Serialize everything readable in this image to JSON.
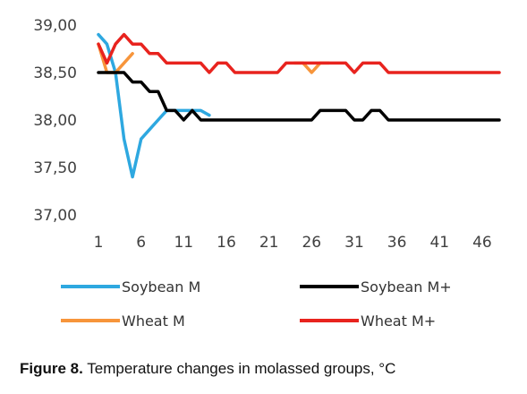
{
  "caption": {
    "label": "Figure 8.",
    "text": "Temperature changes in molassed groups, °C"
  },
  "chart_data": {
    "type": "line",
    "ylim": [
      37.0,
      39.0
    ],
    "yticks": [
      "37,00",
      "37,50",
      "38,00",
      "38,50",
      "39,00"
    ],
    "ytick_values": [
      37.0,
      37.5,
      38.0,
      38.5,
      39.0
    ],
    "xlim": [
      1,
      48
    ],
    "xticks": [
      "1",
      "6",
      "11",
      "16",
      "21",
      "26",
      "31",
      "36",
      "41",
      "46"
    ],
    "xtick_values": [
      1,
      6,
      11,
      16,
      21,
      26,
      31,
      36,
      41,
      46
    ],
    "grid": false,
    "legend_position": "bottom",
    "series": [
      {
        "name": "Soybean M",
        "color": "#2EA8E0",
        "x": [
          1,
          2,
          3,
          4,
          5,
          6,
          7,
          8,
          9,
          10,
          11,
          12,
          13,
          14
        ],
        "values": [
          38.9,
          38.8,
          38.5,
          37.8,
          37.4,
          37.8,
          37.9,
          38.0,
          38.1,
          38.1,
          38.1,
          38.1,
          38.1,
          38.05
        ]
      },
      {
        "name": "Soybean M+",
        "color": "#000000",
        "x": [
          1,
          2,
          3,
          4,
          5,
          6,
          7,
          8,
          9,
          10,
          11,
          12,
          13,
          14,
          15,
          16,
          17,
          18,
          19,
          20,
          21,
          22,
          23,
          24,
          25,
          26,
          27,
          28,
          29,
          30,
          31,
          32,
          33,
          34,
          35,
          36,
          37,
          38,
          39,
          40,
          41,
          42,
          43,
          44,
          45,
          46,
          47,
          48
        ],
        "values": [
          38.5,
          38.5,
          38.5,
          38.5,
          38.4,
          38.4,
          38.3,
          38.3,
          38.1,
          38.1,
          38.0,
          38.1,
          38.0,
          38.0,
          38.0,
          38.0,
          38.0,
          38.0,
          38.0,
          38.0,
          38.0,
          38.0,
          38.0,
          38.0,
          38.0,
          38.0,
          38.1,
          38.1,
          38.1,
          38.1,
          38.0,
          38.0,
          38.1,
          38.1,
          38.0,
          38.0,
          38.0,
          38.0,
          38.0,
          38.0,
          38.0,
          38.0,
          38.0,
          38.0,
          38.0,
          38.0,
          38.0,
          38.0
        ]
      },
      {
        "name": "Wheat M",
        "color": "#F7953B",
        "x": [
          1,
          2,
          3,
          4,
          5,
          24,
          25,
          26,
          27,
          28
        ],
        "values": [
          38.8,
          38.5,
          38.5,
          38.6,
          38.7,
          38.6,
          38.6,
          38.5,
          38.6,
          38.6
        ]
      },
      {
        "name": "Wheat M+",
        "color": "#E8231E",
        "x": [
          1,
          2,
          3,
          4,
          5,
          6,
          7,
          8,
          9,
          10,
          11,
          12,
          13,
          14,
          15,
          16,
          17,
          18,
          19,
          20,
          21,
          22,
          23,
          24,
          25,
          26,
          27,
          28,
          29,
          30,
          31,
          32,
          33,
          34,
          35,
          36,
          37,
          38,
          39,
          40,
          41,
          42,
          43,
          44,
          45,
          46,
          47,
          48
        ],
        "values": [
          38.8,
          38.6,
          38.8,
          38.9,
          38.8,
          38.8,
          38.7,
          38.7,
          38.6,
          38.6,
          38.6,
          38.6,
          38.6,
          38.5,
          38.6,
          38.6,
          38.5,
          38.5,
          38.5,
          38.5,
          38.5,
          38.5,
          38.6,
          38.6,
          38.6,
          38.6,
          38.6,
          38.6,
          38.6,
          38.6,
          38.5,
          38.6,
          38.6,
          38.6,
          38.5,
          38.5,
          38.5,
          38.5,
          38.5,
          38.5,
          38.5,
          38.5,
          38.5,
          38.5,
          38.5,
          38.5,
          38.5,
          38.5
        ]
      }
    ]
  }
}
